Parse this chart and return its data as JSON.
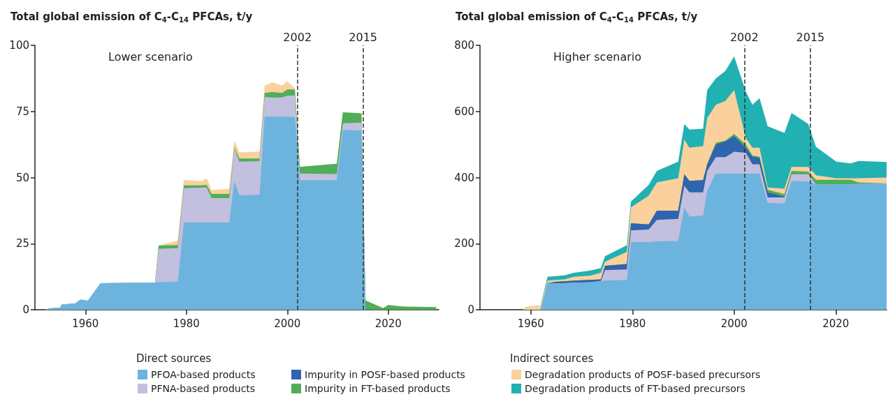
{
  "chart_data": [
    {
      "type": "area",
      "stacked": true,
      "subtitle": "Lower scenario",
      "ylabel": "Total global emission of C$_{4}$-C$_{14}$ PFCAs, t/y",
      "xlim": [
        1950,
        2030
      ],
      "xticks": [
        1960,
        1980,
        2000,
        2020
      ],
      "ylim": [
        0,
        100
      ],
      "yticks": [
        0,
        25,
        50,
        75,
        100
      ],
      "grid": false,
      "marker": "none",
      "ref_lines": [
        {
          "axis": "x",
          "value": 2002,
          "label": "2002",
          "line_style": "dashed",
          "color": "#333333"
        },
        {
          "axis": "x",
          "value": 2015,
          "label": "2015",
          "line_style": "dashed",
          "color": "#333333"
        }
      ],
      "x": [
        1952,
        1953,
        1955,
        1955.3,
        1958,
        1959,
        1960.5,
        1963,
        1973.8,
        1974.5,
        1978.3,
        1979.5,
        1983,
        1984,
        1985,
        1988.5,
        1989.5,
        1990.5,
        1994.5,
        1995.5,
        1997,
        1999,
        2000,
        2001.5,
        2002.5,
        2009.8,
        2011,
        2014.7,
        2015.5,
        2019,
        2020,
        2023,
        2029.5
      ],
      "series": [
        {
          "color": "#6cb4de",
          "values": [
            0,
            0.5,
            0.8,
            2,
            2.4,
            3.8,
            3.4,
            10,
            10.3,
            10.4,
            10.6,
            33,
            33,
            33,
            33,
            33,
            48.5,
            43.3,
            43.5,
            73,
            73,
            73,
            73,
            72.8,
            49,
            49,
            68,
            67.7,
            0,
            0,
            0,
            0,
            0
          ]
        },
        {
          "color": "#c2bfdf",
          "values": [
            0,
            0,
            0,
            0,
            0,
            0,
            0,
            0,
            0,
            12.6,
            12.7,
            13,
            13.2,
            13.3,
            9.2,
            9.2,
            12.5,
            12.7,
            12.7,
            7.5,
            7.3,
            7.3,
            8,
            8.2,
            2.5,
            2.3,
            2.5,
            3.1,
            0,
            0,
            0,
            0,
            0
          ]
        },
        {
          "color": "#4fae57",
          "values": [
            0,
            0,
            0,
            0,
            0,
            0,
            0,
            0,
            0,
            1.3,
            1.2,
            1,
            0.8,
            1,
            1.6,
            1.6,
            0.5,
            1.2,
            1,
            1.5,
            2,
            1.7,
            2.3,
            2.3,
            2.5,
            3.9,
            4.2,
            3.5,
            3.5,
            0.6,
            1.8,
            1.2,
            1
          ]
        },
        {
          "color": "#fad19c",
          "values": [
            0,
            0,
            0,
            0,
            0,
            0,
            0,
            0,
            0,
            0,
            1.7,
            2,
            1.6,
            2.5,
            1.5,
            1.9,
            2.5,
            2.3,
            2.6,
            2.7,
            3.7,
            2.8,
            3.2,
            0.4,
            0,
            0,
            0,
            0,
            0,
            0,
            0,
            0,
            0
          ]
        }
      ]
    },
    {
      "type": "area",
      "stacked": true,
      "subtitle": "Higher scenario",
      "ylabel": "Total global emission of C$_{4}$-C$_{14}$ PFCAs, t/y",
      "xlim": [
        1950,
        2030
      ],
      "xticks": [
        1960,
        1980,
        2000,
        2020
      ],
      "ylim": [
        0,
        800
      ],
      "yticks": [
        0,
        200,
        400,
        600,
        800
      ],
      "grid": false,
      "legend": "bottom",
      "marker": "none",
      "annotations": [
        "Direct sources",
        "Indirect sources"
      ],
      "ref_lines": [
        {
          "axis": "x",
          "value": 2002,
          "label": "2002",
          "line_style": "dashed",
          "color": "#333333"
        },
        {
          "axis": "x",
          "value": 2015,
          "label": "2015",
          "line_style": "dashed",
          "color": "#333333"
        }
      ],
      "x": [
        1958.5,
        1959,
        1961.9,
        1963.3,
        1965,
        1966.6,
        1968.5,
        1971.6,
        1973.8,
        1974.6,
        1978.9,
        1979.7,
        1983.2,
        1984.8,
        1989,
        1990.2,
        1991.2,
        1993.9,
        1994.7,
        1996.4,
        1998.3,
        2000,
        2002.3,
        2003.6,
        2005,
        2006.6,
        2009.9,
        2011.3,
        2014.6,
        2016.1,
        2020.1,
        2022.9,
        2024.5,
        2030
      ],
      "series": [
        {
          "name": "PFOA-based products",
          "color": "#6cb4de",
          "values": [
            0,
            0,
            0,
            80,
            80,
            80,
            82,
            83,
            87,
            88,
            90,
            205,
            205,
            207,
            208,
            310,
            282,
            285,
            360,
            412,
            412,
            412,
            412,
            412,
            412,
            323,
            322,
            390,
            388,
            380,
            380,
            380,
            381,
            382
          ]
        },
        {
          "name": "PFNA-based products",
          "color": "#c2bfdf",
          "values": [
            0,
            0,
            0,
            0,
            0,
            0,
            0,
            0,
            0,
            32,
            32,
            35,
            38,
            65,
            67,
            65,
            73,
            70,
            60,
            50,
            50,
            66,
            63,
            28,
            28,
            17,
            18,
            20,
            22,
            0,
            0,
            0,
            0,
            0
          ]
        },
        {
          "name": "Impurity in POSF-based products",
          "color": "#2f64ae",
          "values": [
            0,
            0,
            0,
            0,
            5,
            6,
            6,
            7,
            5,
            13,
            16,
            22,
            15,
            28,
            25,
            35,
            35,
            37,
            20,
            38,
            48,
            47,
            15,
            23,
            20,
            15,
            2,
            0,
            0,
            0,
            0,
            0,
            0,
            0
          ]
        },
        {
          "name": "Impurity in FT-based products",
          "color": "#4fae57",
          "values": [
            0,
            0,
            0,
            0,
            0,
            0,
            0,
            0,
            0,
            0,
            0,
            0,
            0,
            0,
            0,
            0,
            0,
            0,
            0,
            5,
            2,
            7,
            10,
            4,
            3,
            8,
            8,
            10,
            8,
            13,
            13,
            13,
            4,
            0
          ]
        },
        {
          "name": "Degradation products of POSF-based precursors",
          "color": "#fad19c",
          "values": [
            0,
            8,
            13,
            8,
            5,
            6,
            12,
            13,
            20,
            12,
            37,
            48,
            87,
            85,
            98,
            105,
            100,
            103,
            140,
            115,
            120,
            133,
            20,
            23,
            27,
            7,
            16,
            12,
            14,
            14,
            5,
            5,
            13,
            18
          ]
        },
        {
          "name": "Degradation products of FT-based precursors",
          "color": "#21b1b3",
          "values": [
            0,
            0,
            0,
            12,
            12,
            12,
            12,
            15,
            14,
            17,
            20,
            17,
            33,
            35,
            50,
            47,
            55,
            53,
            85,
            80,
            91,
            102,
            140,
            130,
            150,
            185,
            169,
            163,
            130,
            86,
            50,
            45,
            52,
            47
          ]
        }
      ]
    }
  ]
}
